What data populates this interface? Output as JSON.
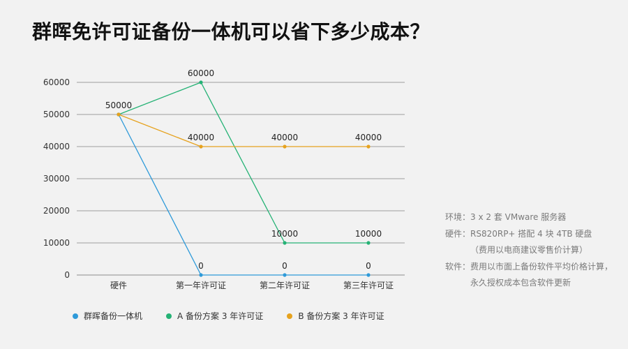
{
  "title": "群晖免许可证备份一体机可以省下多少成本？",
  "chart_data": {
    "type": "line",
    "title": "群晖免许可证备份一体机可以省下多少成本？",
    "categories": [
      "硬件",
      "第一年许可证",
      "第二年许可证",
      "第三年许可证"
    ],
    "series": [
      {
        "name": "群晖备份一体机",
        "color": "#2e9ad9",
        "values": [
          50000,
          0,
          0,
          0
        ]
      },
      {
        "name": "A 备份方案 3 年许可证",
        "color": "#25b275",
        "values": [
          50000,
          60000,
          10000,
          10000
        ]
      },
      {
        "name": "B 备份方案 3 年许可证",
        "color": "#e6a21e",
        "values": [
          50000,
          40000,
          40000,
          40000
        ]
      }
    ],
    "data_labels": [
      {
        "category": "硬件",
        "text": "50000"
      },
      {
        "category": "第一年许可证",
        "text": "60000"
      },
      {
        "category": "第一年许可证",
        "text": "40000"
      },
      {
        "category": "第二年许可证",
        "text": "40000"
      },
      {
        "category": "第三年许可证",
        "text": "40000"
      },
      {
        "category": "第二年许可证",
        "text": "10000"
      },
      {
        "category": "第三年许可证",
        "text": "10000"
      },
      {
        "category": "第一年许可证",
        "text": "0"
      },
      {
        "category": "第二年许可证",
        "text": "0"
      },
      {
        "category": "第三年许可证",
        "text": "0"
      }
    ],
    "yticks": [
      0,
      10000,
      20000,
      30000,
      40000,
      50000,
      60000
    ],
    "ylim": [
      0,
      60000
    ],
    "grid": true,
    "legend": "bottom",
    "xlabel": "",
    "ylabel": ""
  },
  "notes": {
    "env_label": "环境：",
    "env_value": "3 x 2 套 VMware 服务器",
    "hw_label": "硬件：",
    "hw_value": "RS820RP+ 搭配 4 块 4TB 硬盘",
    "hw_note": "（费用以电商建议零售价计算）",
    "sw_label": "软件：",
    "sw_value": "费用以市面上备份软件平均价格计算，",
    "sw_value2": "永久授权成本包含软件更新"
  }
}
